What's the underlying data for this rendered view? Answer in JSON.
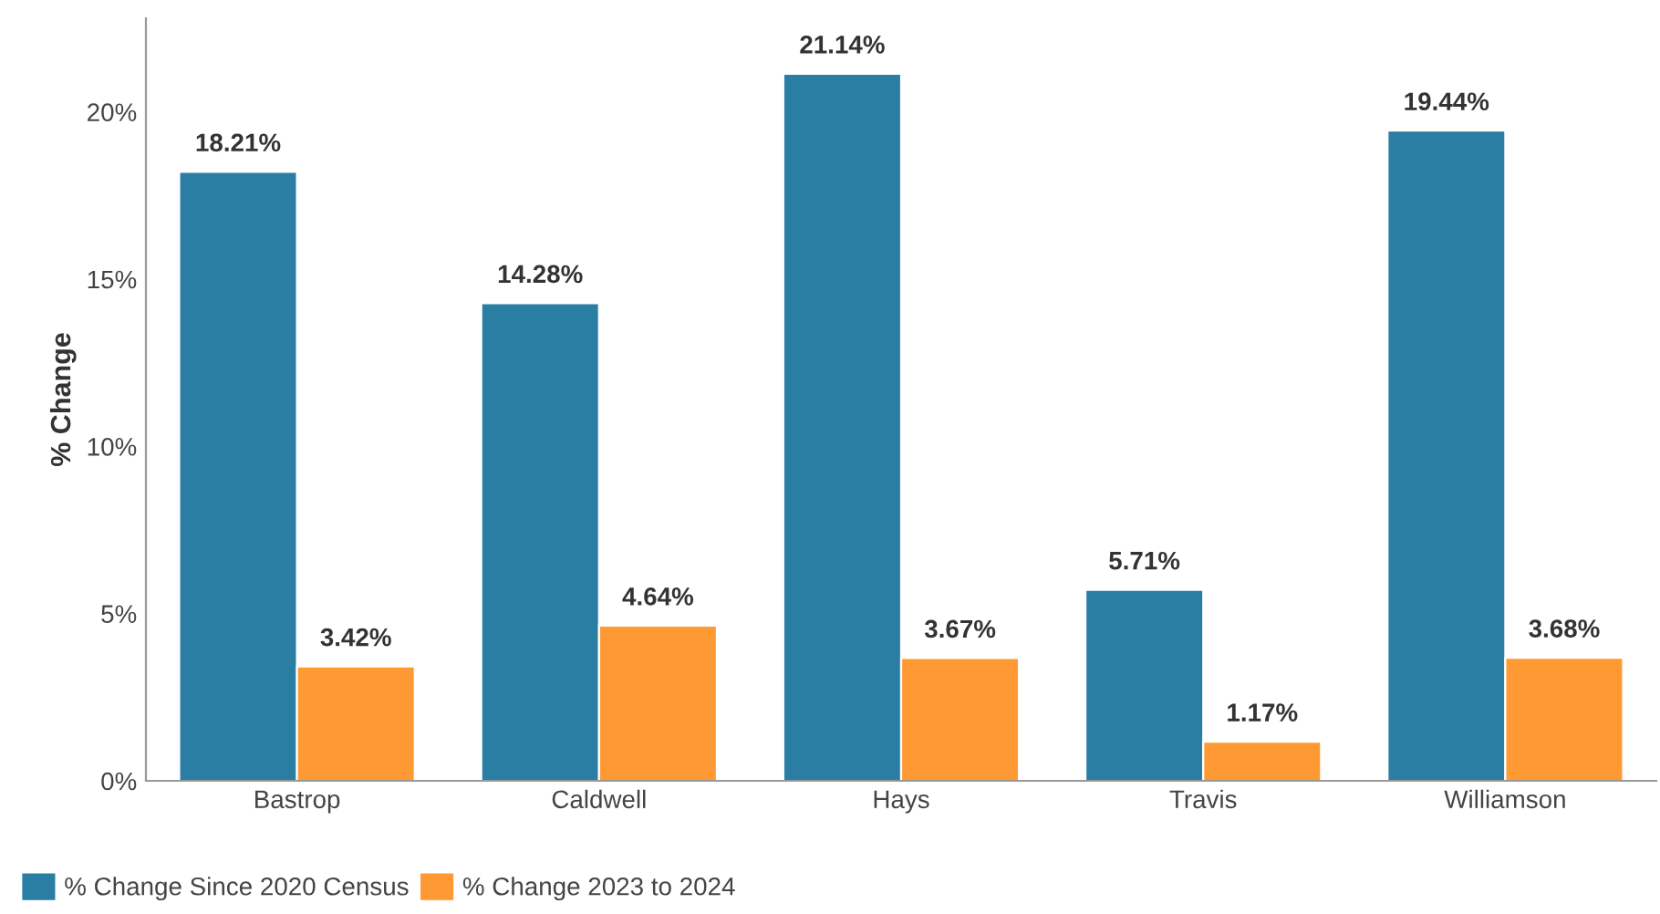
{
  "chart_data": {
    "type": "bar",
    "ylabel": "% Change",
    "categories": [
      "Bastrop",
      "Caldwell",
      "Hays",
      "Travis",
      "Williamson"
    ],
    "series": [
      {
        "name": "% Change Since 2020 Census",
        "color": "#2a7ea3",
        "values": [
          18.21,
          14.28,
          21.14,
          5.71,
          19.44
        ],
        "value_labels": [
          "18.21%",
          "14.28%",
          "21.14%",
          "5.71%",
          "19.44%"
        ]
      },
      {
        "name": "% Change 2023 to 2024",
        "color": "#ff9933",
        "values": [
          3.42,
          4.64,
          3.67,
          1.17,
          3.68
        ],
        "value_labels": [
          "3.42%",
          "4.64%",
          "3.67%",
          "1.17%",
          "3.68%"
        ]
      }
    ],
    "ylim": [
      0,
      22.8
    ],
    "yticks": [
      {
        "value": 0,
        "label": "0%"
      },
      {
        "value": 5,
        "label": "5%"
      },
      {
        "value": 10,
        "label": "10%"
      },
      {
        "value": 15,
        "label": "15%"
      },
      {
        "value": 20,
        "label": "20%"
      }
    ],
    "grid": false,
    "legend": "bottom left"
  }
}
